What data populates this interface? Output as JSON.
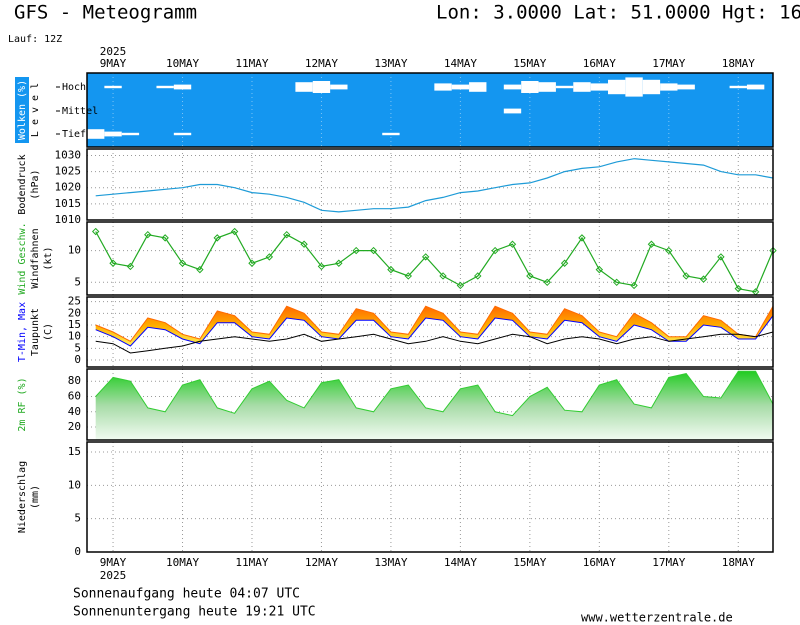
{
  "header": {
    "title": "GFS - Meteogramm",
    "location": "Lon: 3.0000 Lat: 51.0000 Hgt: 16",
    "run": "Lauf: 12Z",
    "year": "2025"
  },
  "footer": {
    "sunrise": "Sonnenaufgang heute 04:07 UTC",
    "sunset": "Sonnenuntergang heute 19:21 UTC",
    "site": "www.wetterzentrale.de"
  },
  "chart_data": [
    {
      "type": "cloud",
      "ylabel": [
        "Wolken (%)",
        "L e v e l"
      ],
      "ylabel_colors": [
        "#ffffff",
        "#000000"
      ],
      "background": "#1496f0",
      "xlim": [
        -9,
        228
      ],
      "xticks": [
        {
          "value": 0,
          "label": "9MAY"
        },
        {
          "value": 24,
          "label": "10MAY"
        },
        {
          "value": 48,
          "label": "11MAY"
        },
        {
          "value": 72,
          "label": "12MAY"
        },
        {
          "value": 96,
          "label": "13MAY"
        },
        {
          "value": 120,
          "label": "14MAY"
        },
        {
          "value": 144,
          "label": "15MAY"
        },
        {
          "value": 168,
          "label": "16MAY"
        },
        {
          "value": 192,
          "label": "17MAY"
        },
        {
          "value": 216,
          "label": "18MAY"
        }
      ],
      "x": [
        -6,
        0,
        6,
        12,
        18,
        24,
        30,
        36,
        42,
        48,
        54,
        60,
        66,
        72,
        78,
        84,
        90,
        96,
        102,
        108,
        114,
        120,
        126,
        132,
        138,
        144,
        150,
        156,
        162,
        168,
        174,
        180,
        186,
        192,
        198,
        204,
        210,
        216,
        222,
        228
      ],
      "series": [
        {
          "name": "Hoch",
          "color": "#ffffff",
          "values": [
            0,
            10,
            0,
            0,
            10,
            20,
            0,
            0,
            0,
            0,
            0,
            0,
            40,
            50,
            20,
            0,
            0,
            0,
            0,
            0,
            30,
            20,
            40,
            0,
            20,
            50,
            40,
            10,
            40,
            30,
            60,
            80,
            60,
            30,
            20,
            0,
            0,
            10,
            20,
            0
          ]
        },
        {
          "name": "Mittel",
          "color": "#ffffff",
          "values": [
            0,
            0,
            0,
            0,
            0,
            0,
            0,
            0,
            0,
            0,
            0,
            0,
            0,
            0,
            0,
            0,
            0,
            0,
            0,
            0,
            0,
            0,
            0,
            0,
            20,
            0,
            0,
            0,
            0,
            0,
            0,
            0,
            0,
            0,
            0,
            0,
            0,
            0,
            0,
            0
          ]
        },
        {
          "name": "Tief",
          "color": "#ffffff",
          "values": [
            40,
            20,
            10,
            0,
            0,
            10,
            0,
            0,
            0,
            0,
            0,
            0,
            0,
            0,
            0,
            0,
            0,
            10,
            0,
            0,
            0,
            0,
            0,
            0,
            0,
            0,
            0,
            0,
            0,
            0,
            0,
            0,
            0,
            0,
            0,
            0,
            0,
            0,
            0,
            0
          ]
        }
      ]
    },
    {
      "type": "line",
      "ylabel": [
        "Bodendruck",
        "(hPa)"
      ],
      "ylabel_colors": [
        "#000000",
        "#000000"
      ],
      "grid": true,
      "xlim": [
        -9,
        228
      ],
      "xticks": [
        0,
        24,
        48,
        72,
        96,
        120,
        144,
        168,
        192,
        216
      ],
      "ylim": [
        1010,
        1032
      ],
      "yticks": [
        1010,
        1015,
        1020,
        1025,
        1030
      ],
      "x": [
        -6,
        0,
        6,
        12,
        18,
        24,
        30,
        36,
        42,
        48,
        54,
        60,
        66,
        72,
        78,
        84,
        90,
        96,
        102,
        108,
        114,
        120,
        126,
        132,
        138,
        144,
        150,
        156,
        162,
        168,
        174,
        180,
        186,
        192,
        198,
        204,
        210,
        216,
        222,
        228
      ],
      "series": [
        {
          "color": "#1e9bd7",
          "values": [
            1017.5,
            1018,
            1018.5,
            1019,
            1019.5,
            1020,
            1021,
            1021,
            1020,
            1018.5,
            1018,
            1017,
            1015.5,
            1013,
            1012.5,
            1013,
            1013.5,
            1013.5,
            1014,
            1016,
            1017,
            1018.5,
            1019,
            1020,
            1021,
            1021.5,
            1023,
            1025,
            1026,
            1026.5,
            1028,
            1029,
            1028.5,
            1028,
            1027.5,
            1027,
            1025,
            1024,
            1024,
            1023
          ]
        }
      ]
    },
    {
      "type": "line",
      "markers": true,
      "ylabel": [
        "Wind Geschw.",
        "Windfahnen",
        "(kt)"
      ],
      "ylabel_colors": [
        "#22aa22",
        "#000000",
        "#000000"
      ],
      "grid": true,
      "xlim": [
        -9,
        228
      ],
      "xticks": [
        0,
        24,
        48,
        72,
        96,
        120,
        144,
        168,
        192,
        216
      ],
      "ylim": [
        3,
        14.5
      ],
      "yticks": [
        5,
        10
      ],
      "x": [
        -6,
        0,
        6,
        12,
        18,
        24,
        30,
        36,
        42,
        48,
        54,
        60,
        66,
        72,
        78,
        84,
        90,
        96,
        102,
        108,
        114,
        120,
        126,
        132,
        138,
        144,
        150,
        156,
        162,
        168,
        174,
        180,
        186,
        192,
        198,
        204,
        210,
        216,
        222,
        228
      ],
      "series": [
        {
          "color": "#22aa22",
          "values": [
            13,
            8,
            7.5,
            12.5,
            12,
            8,
            7,
            12,
            13,
            8,
            9,
            12.5,
            11,
            7.5,
            8,
            10,
            10,
            7,
            6,
            9,
            6,
            4.5,
            6,
            10,
            11,
            6,
            5,
            8,
            12,
            7,
            5,
            4.5,
            11,
            10,
            6,
            5.5,
            9,
            4,
            3.5,
            10
          ]
        }
      ]
    },
    {
      "type": "band",
      "ylabel": [
        "T-Min, Max",
        "Taupunkt",
        "(C)"
      ],
      "ylabel_colors": [
        "#0000ff",
        "#000000",
        "#000000"
      ],
      "grid": true,
      "xlim": [
        -9,
        228
      ],
      "xticks": [
        0,
        24,
        48,
        72,
        96,
        120,
        144,
        168,
        192,
        216
      ],
      "ylim": [
        -3,
        27
      ],
      "yticks": [
        0,
        5,
        10,
        15,
        20,
        25
      ],
      "x": [
        -6,
        0,
        6,
        12,
        18,
        24,
        30,
        36,
        42,
        48,
        54,
        60,
        66,
        72,
        78,
        84,
        90,
        96,
        102,
        108,
        114,
        120,
        126,
        132,
        138,
        144,
        150,
        156,
        162,
        168,
        174,
        180,
        186,
        192,
        198,
        204,
        210,
        216,
        222,
        228
      ],
      "series": [
        {
          "color": "#0000ff",
          "values": [
            13,
            10,
            6,
            14,
            13,
            9,
            7,
            16,
            16,
            10,
            9,
            18,
            17,
            10,
            9,
            17,
            17,
            10,
            9,
            18,
            17,
            10,
            9,
            18,
            17,
            10,
            9,
            17,
            16,
            10,
            8,
            15,
            13,
            8,
            8,
            15,
            14,
            9,
            9,
            19
          ]
        },
        {
          "color": "#ff6a00",
          "values": [
            15,
            12,
            8,
            18,
            16,
            11,
            9,
            21,
            19,
            12,
            11,
            23,
            20,
            12,
            11,
            22,
            20,
            12,
            11,
            23,
            20,
            12,
            11,
            23,
            20,
            12,
            11,
            22,
            19,
            12,
            10,
            20,
            16,
            10,
            10,
            19,
            17,
            11,
            10,
            23
          ]
        },
        {
          "color": "#000000",
          "values": [
            8,
            7,
            3,
            4,
            5,
            6,
            8,
            9,
            10,
            9,
            8,
            9,
            11,
            8,
            9,
            10,
            11,
            9,
            7,
            8,
            10,
            8,
            7,
            9,
            11,
            10,
            7,
            9,
            10,
            9,
            7,
            9,
            10,
            8,
            9,
            10,
            11,
            11,
            10,
            12
          ]
        }
      ]
    },
    {
      "type": "area",
      "ylabel": [
        "2m RF (%)"
      ],
      "ylabel_colors": [
        "#22aa22"
      ],
      "grid": true,
      "xlim": [
        -9,
        228
      ],
      "xticks": [
        0,
        24,
        48,
        72,
        96,
        120,
        144,
        168,
        192,
        216
      ],
      "ylim": [
        3,
        96
      ],
      "yticks": [
        20,
        40,
        60,
        80
      ],
      "x": [
        -6,
        0,
        6,
        12,
        18,
        24,
        30,
        36,
        42,
        48,
        54,
        60,
        66,
        72,
        78,
        84,
        90,
        96,
        102,
        108,
        114,
        120,
        126,
        132,
        138,
        144,
        150,
        156,
        162,
        168,
        174,
        180,
        186,
        192,
        198,
        204,
        210,
        216,
        222,
        228
      ],
      "series": [
        {
          "color": "#33cc33",
          "values": [
            60,
            85,
            80,
            45,
            40,
            75,
            82,
            45,
            38,
            70,
            80,
            55,
            45,
            78,
            82,
            45,
            40,
            70,
            75,
            45,
            40,
            70,
            75,
            40,
            35,
            60,
            72,
            42,
            40,
            75,
            82,
            50,
            45,
            85,
            90,
            60,
            58,
            93,
            93,
            50
          ]
        }
      ]
    },
    {
      "type": "bar",
      "ylabel": [
        "Niederschlag",
        "(mm)"
      ],
      "ylabel_colors": [
        "#000000",
        "#000000"
      ],
      "grid": true,
      "xlim": [
        -9,
        228
      ],
      "xticks": [
        {
          "value": 0,
          "label": "9MAY"
        },
        {
          "value": 24,
          "label": "10MAY"
        },
        {
          "value": 48,
          "label": "11MAY"
        },
        {
          "value": 72,
          "label": "12MAY"
        },
        {
          "value": 96,
          "label": "13MAY"
        },
        {
          "value": 120,
          "label": "14MAY"
        },
        {
          "value": 144,
          "label": "15MAY"
        },
        {
          "value": 168,
          "label": "16MAY"
        },
        {
          "value": 192,
          "label": "17MAY"
        },
        {
          "value": 216,
          "label": "18MAY"
        }
      ],
      "ylim": [
        0,
        16.5
      ],
      "yticks": [
        0,
        5,
        10,
        15
      ],
      "x": [
        -6,
        0,
        6,
        12,
        18,
        24,
        30,
        36,
        42,
        48,
        54,
        60,
        66,
        72,
        78,
        84,
        90,
        96,
        102,
        108,
        114,
        120,
        126,
        132,
        138,
        144,
        150,
        156,
        162,
        168,
        174,
        180,
        186,
        192,
        198,
        204,
        210,
        216,
        222,
        228
      ],
      "series": [
        {
          "color": "#ff0000",
          "values": [
            0,
            0,
            0,
            0,
            0,
            0,
            0,
            0,
            0,
            0,
            0,
            0,
            0,
            0,
            0,
            0,
            0,
            0,
            0,
            0,
            0,
            0,
            0,
            0,
            0,
            0,
            0,
            0,
            0,
            0,
            0,
            0,
            0,
            0,
            0,
            0,
            0,
            0,
            0,
            0
          ]
        }
      ]
    }
  ]
}
